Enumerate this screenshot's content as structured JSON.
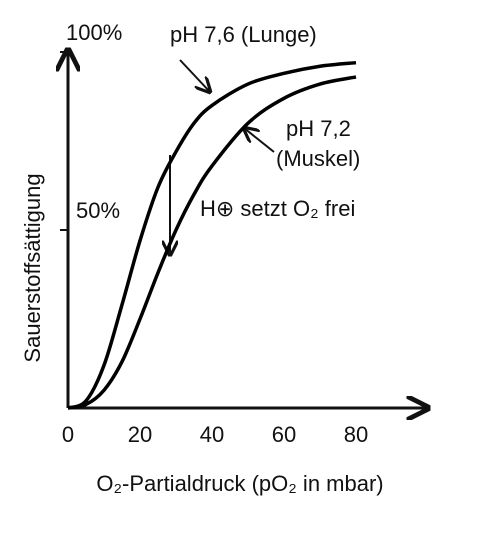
{
  "chart_data": {
    "type": "line",
    "x": [
      0,
      5,
      10,
      15,
      20,
      25,
      30,
      35,
      40,
      50,
      60,
      70,
      80
    ],
    "series": [
      {
        "color": "#000000",
        "values": [
          0,
          2,
          12,
          29,
          47,
          62,
          72,
          80,
          85,
          91,
          94,
          96,
          97
        ]
      },
      {
        "color": "#000000",
        "values": [
          0,
          1,
          5,
          13,
          25,
          38,
          50,
          60,
          68,
          80,
          87,
          91,
          93
        ]
      }
    ],
    "xlim": [
      0,
      100
    ],
    "ylim": [
      0,
      100
    ],
    "xticks": [
      0,
      20,
      40,
      60,
      80
    ],
    "yticks": [
      {
        "value": 50,
        "label": "50%"
      },
      {
        "value": 100,
        "label": "100%"
      }
    ],
    "xlabel": "O₂-Partialdruck (pO₂ in mbar)",
    "ylabel": "Sauerstoffsättigung",
    "annotations": [
      "pH 7,6 (Lunge)",
      "pH 7,2",
      "(Muskel)",
      "H⊕ setzt O₂ frei"
    ]
  }
}
